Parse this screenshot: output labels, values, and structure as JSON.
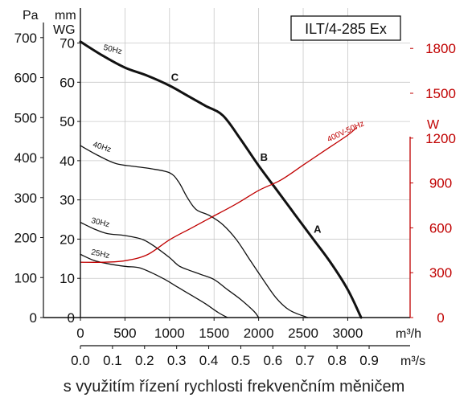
{
  "caption": "s využitím řízení rychlosti frekvenčním měničem",
  "chart_data": {
    "type": "line",
    "model_label": "ILT/4-285 Ex",
    "axes": {
      "pressure_pa": {
        "label": "Pa",
        "range": [
          0,
          700
        ],
        "ticks": [
          0,
          100,
          200,
          300,
          400,
          500,
          600,
          700
        ]
      },
      "pressure_mmwg": {
        "label_line1": "mm",
        "label_line2": "WG",
        "range": [
          0,
          71.4
        ],
        "ticks": [
          0,
          10,
          20,
          30,
          40,
          50,
          60,
          70
        ]
      },
      "power_w": {
        "label": "W",
        "range": [
          0,
          2070
        ],
        "ticks": [
          0,
          300,
          600,
          900,
          1200,
          1500,
          1800
        ],
        "color": "#c00000"
      },
      "flow_m3h": {
        "label": "m³/h",
        "range": [
          0,
          3700
        ],
        "ticks": [
          0,
          500,
          1000,
          1500,
          2000,
          2500,
          3000
        ]
      },
      "flow_m3s": {
        "label": "m³/s",
        "ticks": [
          0.0,
          0.1,
          0.2,
          0.3,
          0.4,
          0.5,
          0.6,
          0.7,
          0.8,
          0.9
        ]
      }
    },
    "grid": true,
    "series": [
      {
        "name": "50Hz",
        "axis": "pressure_pa",
        "emphasis": true,
        "points": [
          [
            0,
            690
          ],
          [
            250,
            655
          ],
          [
            500,
            625
          ],
          [
            750,
            605
          ],
          [
            1000,
            580
          ],
          [
            1200,
            555
          ],
          [
            1400,
            530
          ],
          [
            1600,
            505
          ],
          [
            1800,
            445
          ],
          [
            2000,
            380
          ],
          [
            2200,
            320
          ],
          [
            2400,
            260
          ],
          [
            2600,
            200
          ],
          [
            2800,
            140
          ],
          [
            3000,
            70
          ],
          [
            3150,
            0
          ]
        ]
      },
      {
        "name": "40Hz",
        "axis": "pressure_pa",
        "emphasis": false,
        "points": [
          [
            0,
            430
          ],
          [
            200,
            405
          ],
          [
            400,
            385
          ],
          [
            600,
            378
          ],
          [
            800,
            372
          ],
          [
            1000,
            362
          ],
          [
            1100,
            340
          ],
          [
            1200,
            300
          ],
          [
            1300,
            270
          ],
          [
            1450,
            255
          ],
          [
            1600,
            232
          ],
          [
            1750,
            195
          ],
          [
            1900,
            145
          ],
          [
            2050,
            95
          ],
          [
            2200,
            48
          ],
          [
            2350,
            18
          ],
          [
            2550,
            0
          ]
        ]
      },
      {
        "name": "30Hz",
        "axis": "pressure_pa",
        "emphasis": false,
        "points": [
          [
            0,
            238
          ],
          [
            150,
            222
          ],
          [
            300,
            210
          ],
          [
            500,
            205
          ],
          [
            700,
            195
          ],
          [
            850,
            175
          ],
          [
            1000,
            150
          ],
          [
            1100,
            130
          ],
          [
            1200,
            120
          ],
          [
            1350,
            108
          ],
          [
            1500,
            95
          ],
          [
            1650,
            70
          ],
          [
            1800,
            45
          ],
          [
            1950,
            15
          ],
          [
            2000,
            0
          ]
        ]
      },
      {
        "name": "25Hz",
        "axis": "pressure_pa",
        "emphasis": false,
        "points": [
          [
            0,
            158
          ],
          [
            150,
            143
          ],
          [
            300,
            135
          ],
          [
            500,
            128
          ],
          [
            650,
            125
          ],
          [
            800,
            112
          ],
          [
            950,
            95
          ],
          [
            1100,
            75
          ],
          [
            1250,
            55
          ],
          [
            1400,
            35
          ],
          [
            1550,
            12
          ],
          [
            1650,
            0
          ]
        ]
      },
      {
        "name": "400V-50Hz",
        "axis": "power_w",
        "emphasis": false,
        "color": "#c00000",
        "points": [
          [
            0,
            370
          ],
          [
            250,
            370
          ],
          [
            500,
            380
          ],
          [
            750,
            420
          ],
          [
            1000,
            520
          ],
          [
            1250,
            600
          ],
          [
            1500,
            680
          ],
          [
            1750,
            760
          ],
          [
            2000,
            850
          ],
          [
            2250,
            920
          ],
          [
            2500,
            1020
          ],
          [
            2750,
            1120
          ],
          [
            3000,
            1220
          ],
          [
            3100,
            1270
          ]
        ]
      }
    ],
    "point_labels": [
      {
        "label": "C",
        "x": 1000,
        "y": 580
      },
      {
        "label": "B",
        "x": 2000,
        "y": 380
      },
      {
        "label": "A",
        "x": 2600,
        "y": 200
      }
    ]
  }
}
